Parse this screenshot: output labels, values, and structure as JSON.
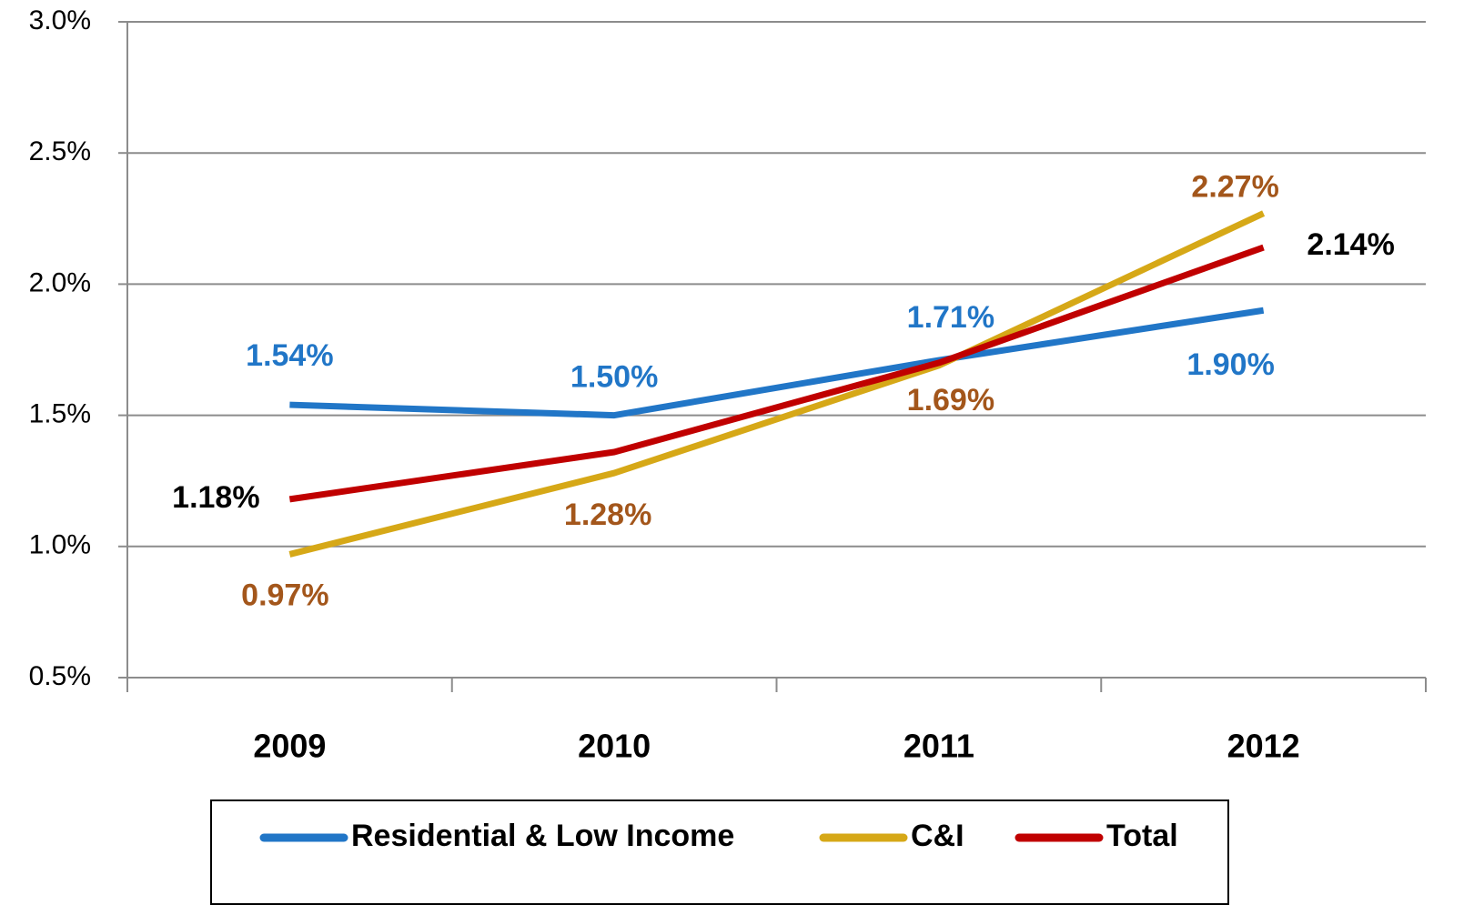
{
  "chart_data": {
    "type": "line",
    "categories": [
      "2009",
      "2010",
      "2011",
      "2012"
    ],
    "series": [
      {
        "name": "Residential & Low Income",
        "color": "#2176c7",
        "label_color": "#2176c7",
        "values": [
          1.54,
          1.5,
          1.71,
          1.9
        ],
        "value_labels": [
          "1.54%",
          "1.50%",
          "1.71%",
          "1.90%"
        ]
      },
      {
        "name": "C&I",
        "color": "#d6a817",
        "label_color": "#a3561b",
        "values": [
          0.97,
          1.28,
          1.69,
          2.27
        ],
        "value_labels": [
          "0.97%",
          "1.28%",
          "1.69%",
          "2.27%"
        ]
      },
      {
        "name": "Total",
        "color": "#c00000",
        "label_color": "#000000",
        "values": [
          1.18,
          1.36,
          1.7,
          2.14
        ],
        "value_labels": [
          "1.18%",
          null,
          null,
          "2.14%"
        ]
      }
    ],
    "ylim": [
      0.5,
      3.0
    ],
    "yticks": [
      {
        "value": 0.5,
        "label": "0.5%"
      },
      {
        "value": 1.0,
        "label": "1.0%"
      },
      {
        "value": 1.5,
        "label": "1.5%"
      },
      {
        "value": 2.0,
        "label": "2.0%"
      },
      {
        "value": 2.5,
        "label": "2.5%"
      },
      {
        "value": 3.0,
        "label": "3.0%"
      }
    ],
    "grid": true,
    "legend": "bottom"
  }
}
